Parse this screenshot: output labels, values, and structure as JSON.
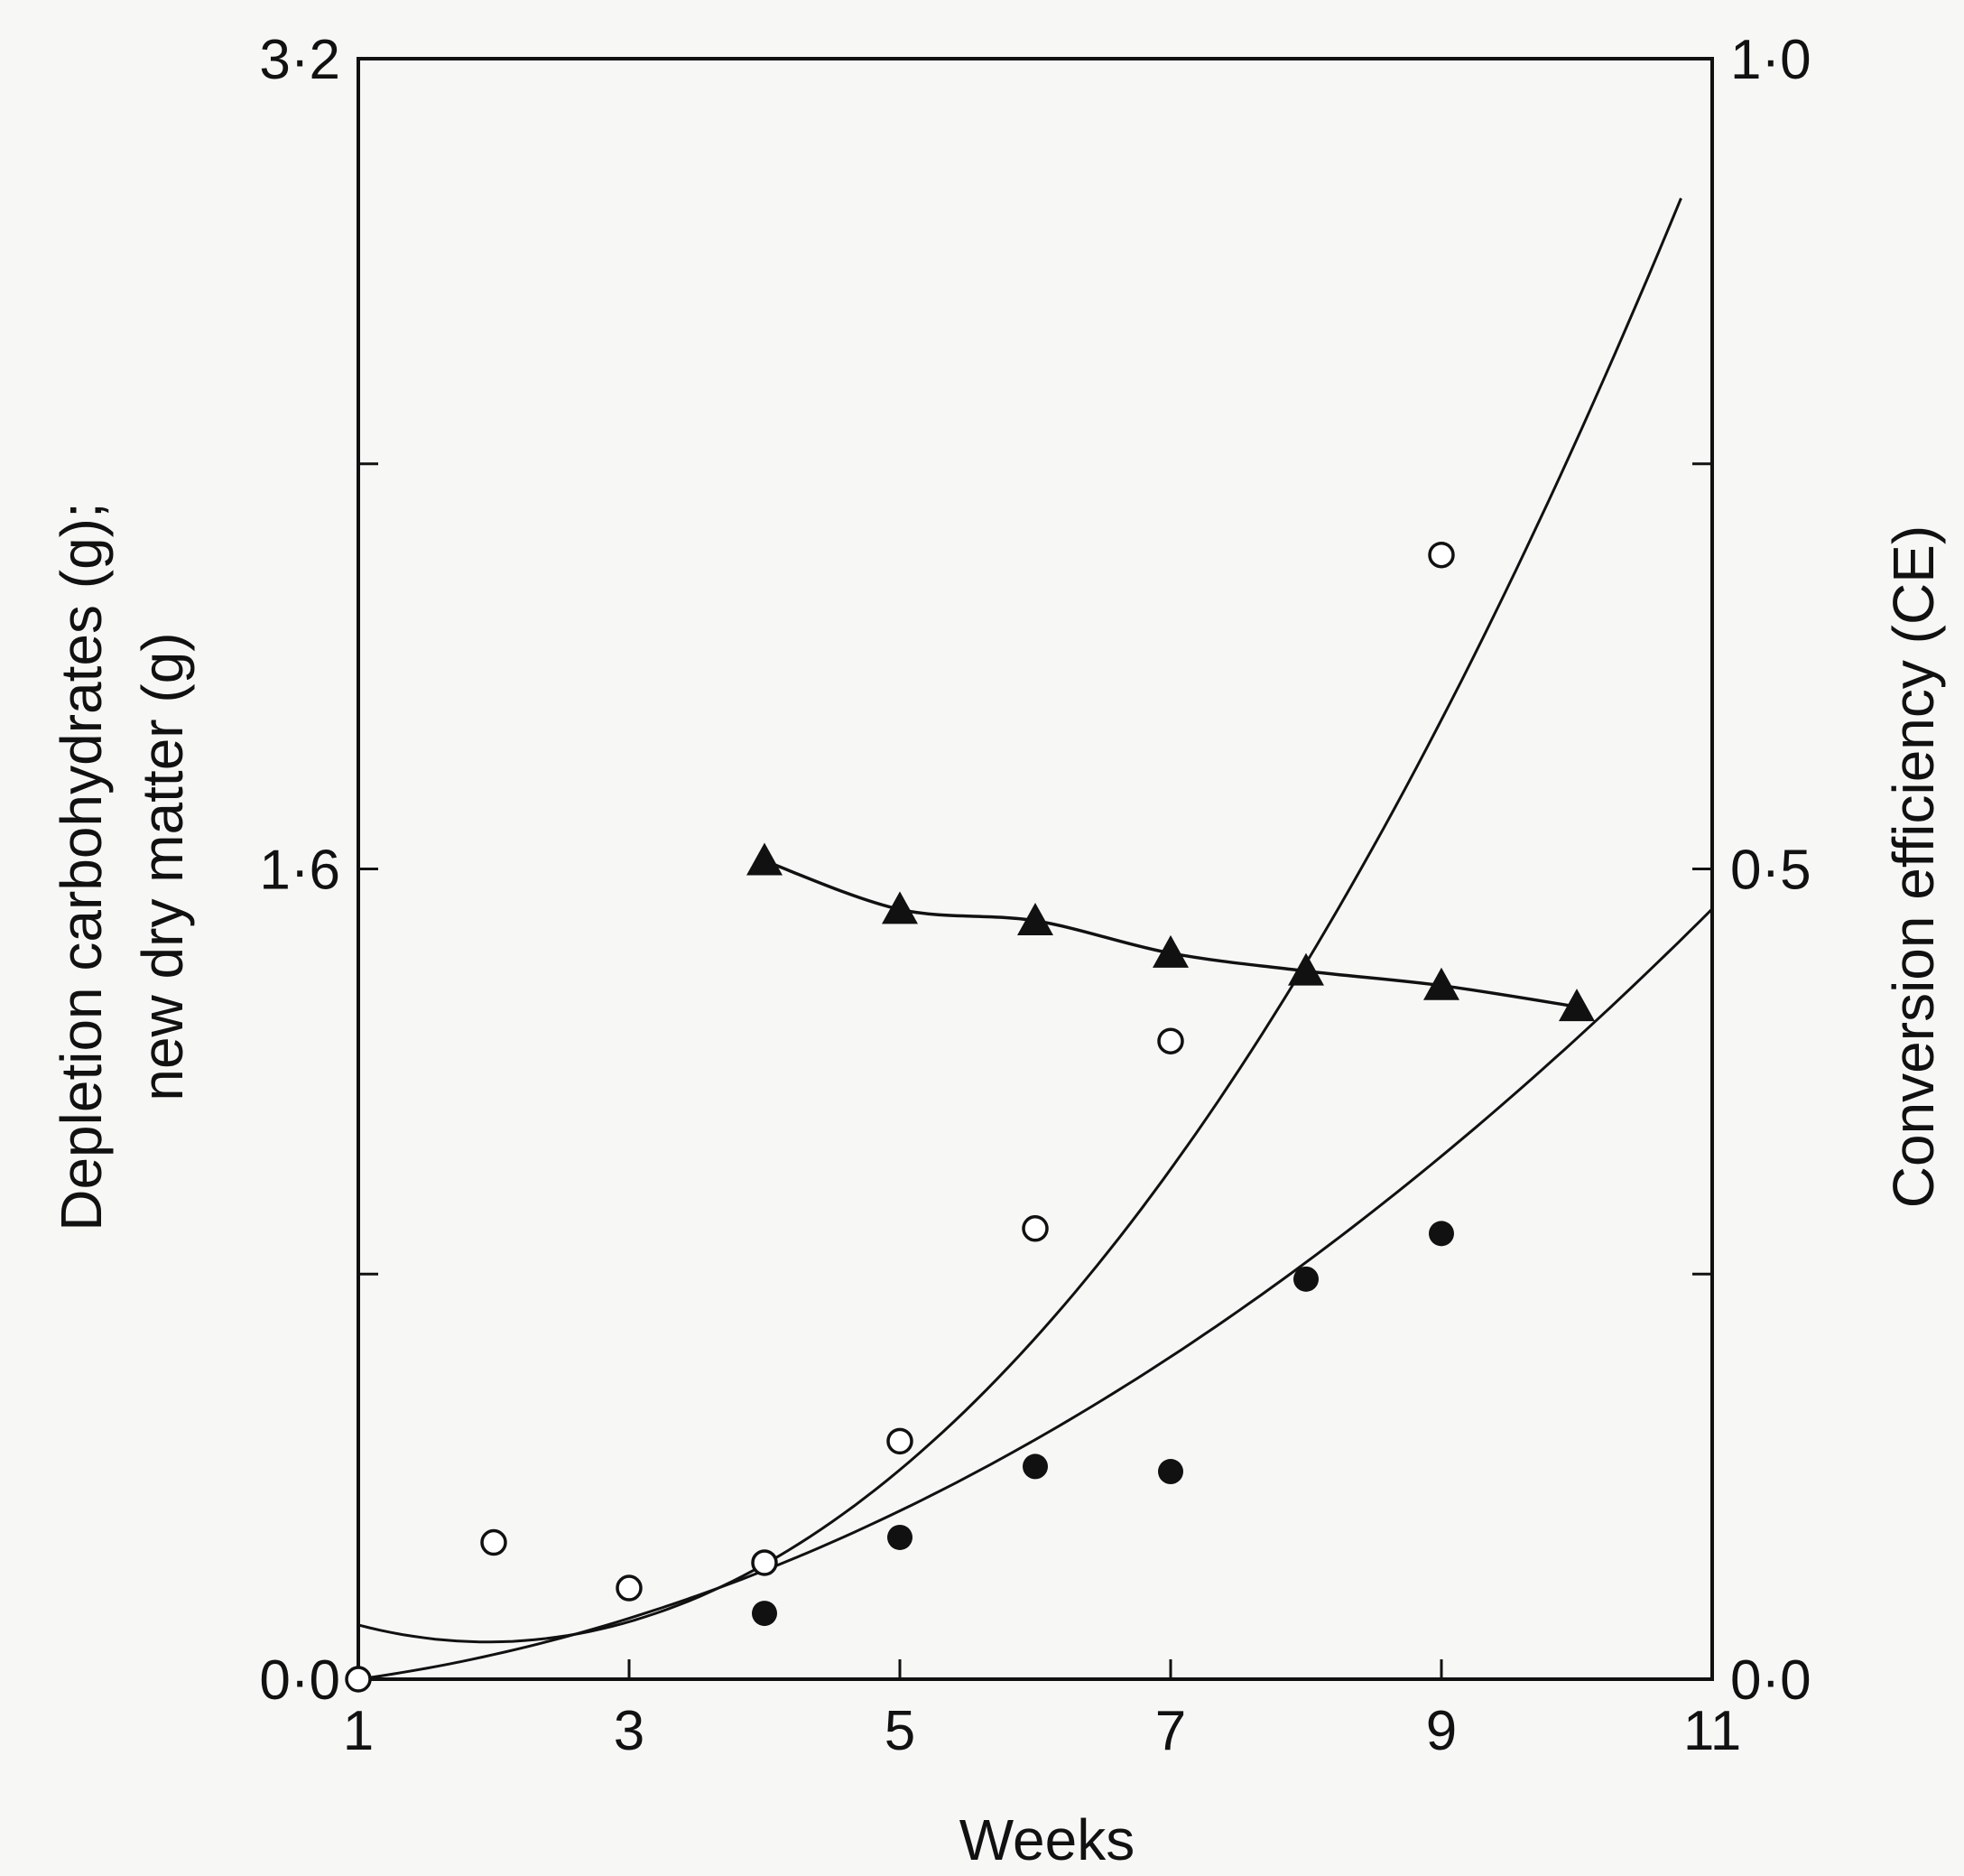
{
  "chart_data": {
    "type": "scatter",
    "title": "",
    "xlabel": "Weeks",
    "ylabel_left_line1": "Depletion carbohydrates (g);",
    "ylabel_left_line2": "new dry matter (g)",
    "ylabel_right": "Conversion efficiency (CE)",
    "xlim": [
      1,
      11
    ],
    "ylim_left": [
      0.0,
      3.2
    ],
    "ylim_right": [
      0.0,
      1.0
    ],
    "x_ticks": [
      1,
      3,
      5,
      7,
      9,
      11
    ],
    "x_tick_labels": [
      "1",
      "3",
      "5",
      "7",
      "9",
      "11"
    ],
    "y_left_ticks": [
      0.0,
      1.6,
      3.2
    ],
    "y_left_tick_labels": [
      "0·0",
      "1·6",
      "3·2"
    ],
    "y_left_minor_ticks": [
      0.8,
      2.4
    ],
    "y_right_ticks": [
      0.0,
      0.5,
      1.0
    ],
    "y_right_tick_labels": [
      "0·0",
      "0·5",
      "1·0"
    ],
    "y_right_minor_ticks": [
      0.25,
      0.75
    ],
    "grid": false,
    "legend": "none",
    "series": [
      {
        "marker": "open-circle",
        "axis": "left",
        "points": [
          [
            1,
            0.0
          ],
          [
            2,
            0.27
          ],
          [
            3,
            0.18
          ],
          [
            4,
            0.23
          ],
          [
            5,
            0.47
          ],
          [
            6,
            0.89
          ],
          [
            7,
            1.26
          ],
          [
            9,
            2.22
          ]
        ],
        "fit": {
          "kind": "quadratic",
          "coeffs": [
            0.214,
            -0.1436,
            0.0367
          ],
          "x_range": [
            1,
            10.77
          ]
        }
      },
      {
        "marker": "filled-circle",
        "axis": "left",
        "points": [
          [
            4,
            0.13
          ],
          [
            5,
            0.28
          ],
          [
            6,
            0.42
          ],
          [
            7,
            0.41
          ],
          [
            8,
            0.79
          ],
          [
            9,
            0.88
          ]
        ],
        "fit": {
          "kind": "quadratic",
          "coeffs": [
            -0.0256,
            0.0141,
            0.0115
          ],
          "x_range": [
            1,
            11
          ]
        }
      },
      {
        "marker": "filled-triangle",
        "axis": "right",
        "points": [
          [
            4,
            0.505
          ],
          [
            5,
            0.475
          ],
          [
            6,
            0.468
          ],
          [
            7,
            0.448
          ],
          [
            8,
            0.437
          ],
          [
            9,
            0.428
          ],
          [
            10,
            0.415
          ]
        ],
        "line": "smooth"
      }
    ]
  }
}
